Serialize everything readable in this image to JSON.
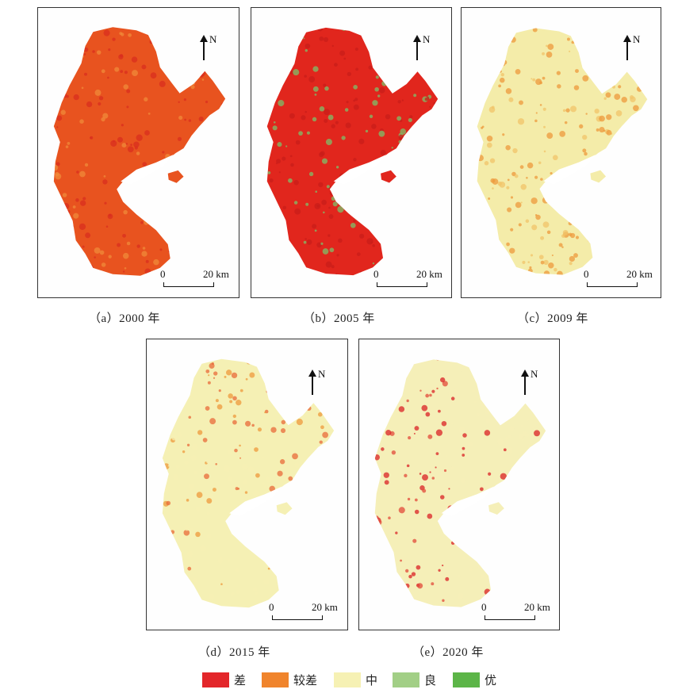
{
  "panels": [
    {
      "id": "a",
      "caption": "（a）2000 年",
      "base_color": "#e8531f",
      "accent_color": "#d92d1f",
      "speckle_color": "#f08a3a"
    },
    {
      "id": "b",
      "caption": "（b）2005 年",
      "base_color": "#e1261d",
      "accent_color": "#c81e1a",
      "speckle_color": "#7cc06a"
    },
    {
      "id": "c",
      "caption": "（c）2009 年",
      "base_color": "#f4eca9",
      "accent_color": "#ee9a3c",
      "speckle_color": "#f2c46a"
    },
    {
      "id": "d",
      "caption": "（d）2015 年",
      "base_color": "#f5f0b4",
      "accent_color": "#ee9a3c",
      "speckle_color": "#e86b3a"
    },
    {
      "id": "e",
      "caption": "（e）2020 年",
      "base_color": "#f5efb8",
      "accent_color": "#d92225",
      "speckle_color": "#e14a3a"
    }
  ],
  "north_label": "N",
  "scale": {
    "zero": "0",
    "distance": "20 km"
  },
  "legend": [
    {
      "label": "差",
      "color": "#e3262a"
    },
    {
      "label": "较差",
      "color": "#f0842c"
    },
    {
      "label": "中",
      "color": "#f6f1b4"
    },
    {
      "label": "良",
      "color": "#a2cf86"
    },
    {
      "label": "优",
      "color": "#5cb548"
    }
  ]
}
